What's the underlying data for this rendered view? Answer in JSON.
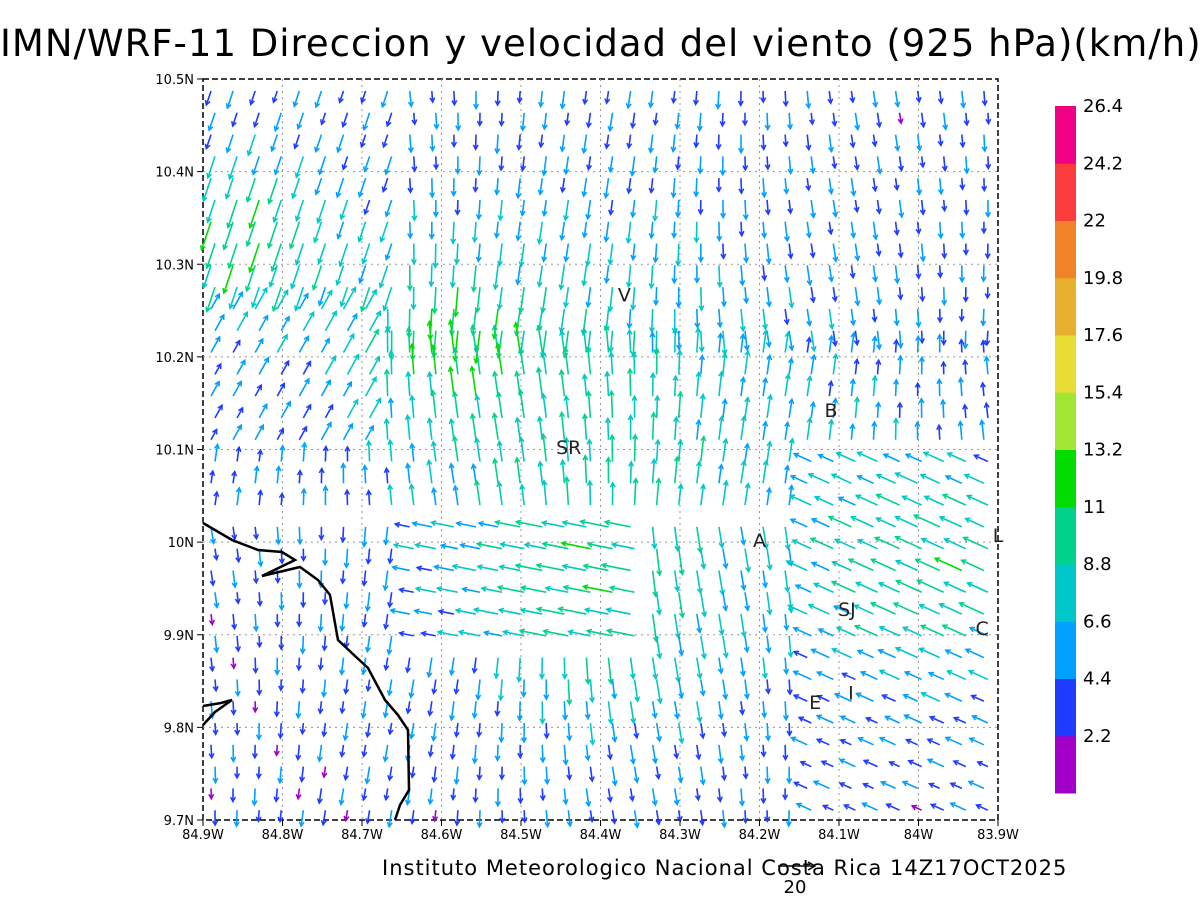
{
  "title": "IMN/WRF-11 Direccion y velocidad del viento (925 hPa)(km/h)",
  "footer": "Instituto Meteorologico Nacional Costa Rica 14Z17OCT2025",
  "reference_vector_label": "20",
  "map": {
    "lon_range": [
      -84.9,
      -83.9
    ],
    "lat_range": [
      9.7,
      10.5
    ],
    "x_ticks": [
      "84.9W",
      "84.8W",
      "84.7W",
      "84.6W",
      "84.5W",
      "84.4W",
      "84.3W",
      "84.2W",
      "84.1W",
      "84W",
      "83.9W"
    ],
    "y_ticks": [
      "9.7N",
      "9.8N",
      "9.9N",
      "10N",
      "10.1N",
      "10.2N",
      "10.3N",
      "10.4N",
      "10.5N"
    ],
    "grid": "dotted",
    "coastline_color": "#000000"
  },
  "cities": [
    {
      "label": "V",
      "lon": -84.37,
      "lat": 10.26
    },
    {
      "label": "SR",
      "lon": -84.44,
      "lat": 10.095
    },
    {
      "label": "B",
      "lon": -84.11,
      "lat": 10.135
    },
    {
      "label": "A",
      "lon": -84.2,
      "lat": 9.995
    },
    {
      "label": "SJ",
      "lon": -84.09,
      "lat": 9.92
    },
    {
      "label": "C",
      "lon": -83.92,
      "lat": 9.9
    },
    {
      "label": "E",
      "lon": -84.13,
      "lat": 9.82
    },
    {
      "label": "I",
      "lon": -84.085,
      "lat": 9.83
    },
    {
      "label": "L",
      "lon": -83.9,
      "lat": 10.0
    }
  ],
  "colorbar": {
    "labels": [
      "2.2",
      "4.4",
      "6.6",
      "8.8",
      "11",
      "13.2",
      "15.4",
      "17.6",
      "19.8",
      "22",
      "24.2",
      "26.4"
    ],
    "colors": [
      "#a000c8",
      "#1e3cff",
      "#00a0ff",
      "#00c8c8",
      "#00d28c",
      "#00dc00",
      "#a0e632",
      "#e6dc32",
      "#e6af2d",
      "#f08228",
      "#fa3c3c",
      "#f00082"
    ]
  }
}
